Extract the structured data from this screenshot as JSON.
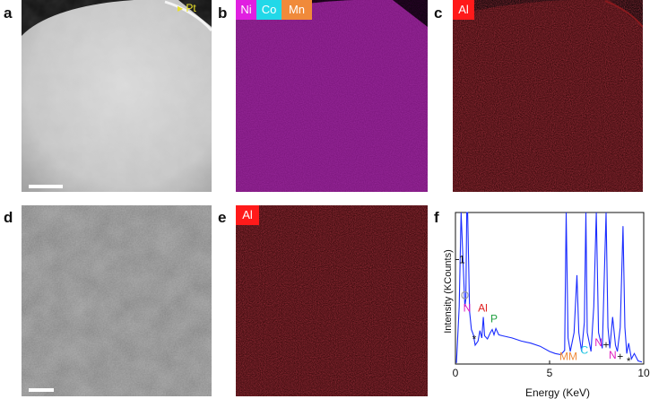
{
  "figure": {
    "panel_labels": [
      "a",
      "b",
      "c",
      "d",
      "e",
      "f"
    ],
    "panel_a": {
      "marker_label": "Pt",
      "marker_color": "#e8e02a"
    },
    "panel_b": {
      "tags": [
        {
          "text": "Ni",
          "bg": "#e020e0"
        },
        {
          "text": "Co",
          "bg": "#22d8e8"
        },
        {
          "text": "Mn",
          "bg": "#f08a3a"
        }
      ],
      "map_color": "#9a2a9c"
    },
    "panel_c": {
      "tag": {
        "text": "Al",
        "bg": "#ff1a1a"
      },
      "map_color": "#3a0a0c"
    },
    "panel_e": {
      "tag": {
        "text": "Al",
        "bg": "#ff1a1a"
      },
      "map_color": "#3a0a0c"
    }
  },
  "chart_data": {
    "type": "line",
    "xlabel": "Energy (KeV)",
    "ylabel": "Intensity (KCounts)",
    "xlim": [
      0,
      10
    ],
    "ylim": [
      0,
      1.45
    ],
    "xticks": [
      0,
      5,
      10
    ],
    "yticks": [
      1
    ],
    "series_color": "#1a2cff",
    "series": [
      {
        "x": [
          0.05,
          0.2,
          0.3,
          0.4,
          0.5,
          0.55,
          0.6,
          0.65,
          0.75,
          0.85,
          0.95,
          1.05,
          1.2,
          1.3,
          1.4,
          1.48,
          1.55,
          1.7,
          1.85,
          1.95,
          2.05,
          2.15,
          2.3,
          2.5,
          3.0,
          3.5,
          4.0,
          4.5,
          5.0,
          5.3,
          5.6,
          5.8,
          5.88,
          5.98,
          6.1,
          6.3,
          6.45,
          6.55,
          6.7,
          6.85,
          6.93,
          7.0,
          7.2,
          7.35,
          7.48,
          7.6,
          7.8,
          8.0,
          8.1,
          8.2,
          8.35,
          8.5,
          8.6,
          8.75,
          8.9,
          9.0,
          9.1,
          9.2,
          9.35,
          9.5,
          9.7,
          9.9
        ],
        "y": [
          0.01,
          0.55,
          1.45,
          1.0,
          0.55,
          0.62,
          1.45,
          1.45,
          0.5,
          0.33,
          0.28,
          0.18,
          0.22,
          0.32,
          0.25,
          0.45,
          0.27,
          0.24,
          0.3,
          0.33,
          0.28,
          0.34,
          0.28,
          0.27,
          0.25,
          0.22,
          0.2,
          0.17,
          0.12,
          0.1,
          0.09,
          0.13,
          1.45,
          0.25,
          0.12,
          0.3,
          0.85,
          0.3,
          0.12,
          0.4,
          1.45,
          0.3,
          0.12,
          0.55,
          1.45,
          0.3,
          0.15,
          1.45,
          0.35,
          0.15,
          0.45,
          0.18,
          0.12,
          0.35,
          1.32,
          0.35,
          0.1,
          0.2,
          0.05,
          0.1,
          0.03,
          0.02
        ]
      }
    ],
    "annotations": [
      {
        "text": "O",
        "x": 0.5,
        "y": 0.62,
        "color": "#9a9a9a"
      },
      {
        "text": "N",
        "x": 0.62,
        "y": 0.5,
        "color": "#e020c0"
      },
      {
        "text": "Al",
        "x": 1.45,
        "y": 0.5,
        "color": "#e02020"
      },
      {
        "text": "P",
        "x": 2.05,
        "y": 0.4,
        "color": "#20a040"
      },
      {
        "text": "*",
        "x": 1.0,
        "y": 0.2,
        "color": "#111111"
      },
      {
        "text": "MM",
        "x": 6.0,
        "y": 0.04,
        "color": "#f08a3a"
      },
      {
        "text": "C",
        "x": 6.85,
        "y": 0.1,
        "color": "#22c8e0"
      },
      {
        "text": "N",
        "x": 7.6,
        "y": 0.17,
        "color": "#e020c0"
      },
      {
        "text": "+",
        "x": 8.0,
        "y": 0.15,
        "color": "#111111"
      },
      {
        "text": "N",
        "x": 8.35,
        "y": 0.05,
        "color": "#e020c0"
      },
      {
        "text": "+",
        "x": 8.75,
        "y": 0.04,
        "color": "#111111"
      },
      {
        "text": "*",
        "x": 9.2,
        "y": -0.01,
        "color": "#111111"
      }
    ]
  }
}
